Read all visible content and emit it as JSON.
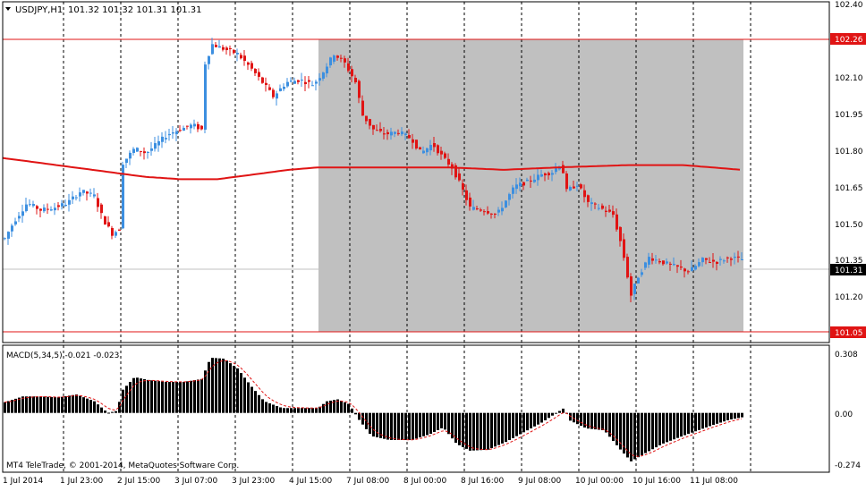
{
  "window": {
    "title": "USDJPY,H1",
    "ohlc": "101.32 101.32 101.31 101.31",
    "menu_icon": "triangle-down-icon"
  },
  "colors": {
    "background": "#ffffff",
    "grid": "#000000",
    "up_candle": "#3c8fe0",
    "down_candle": "#e01414",
    "ma_line": "#e01414",
    "rect_fill": "#c0c0c0",
    "hline": "#e01414",
    "price_label_bg": "#e01414",
    "current_label_bg": "#000000",
    "macd_hist": "#000000",
    "macd_signal": "#e01414"
  },
  "price_axis": {
    "range": [
      100.96,
      102.4
    ],
    "ticks": [
      "102.40",
      "102.10",
      "101.95",
      "101.80",
      "101.65",
      "101.50",
      "101.35",
      "101.20"
    ]
  },
  "price_labels": {
    "upper_line": "102.26",
    "lower_line": "101.05",
    "current": "101.31"
  },
  "macd": {
    "label": "MACD(5,34,5) -0.021 -0.023",
    "range": [
      -0.274,
      0.308
    ],
    "ticks": [
      "0.308",
      "0.00",
      "-0.274"
    ]
  },
  "time_axis": {
    "labels": [
      "1 Jul 2014",
      "1 Jul 23:00",
      "2 Jul 15:00",
      "3 Jul 07:00",
      "3 Jul 23:00",
      "4 Jul 15:00",
      "7 Jul 08:00",
      "8 Jul 00:00",
      "8 Jul 16:00",
      "9 Jul 08:00",
      "10 Jul 00:00",
      "10 Jul 16:00",
      "11 Jul 08:00"
    ]
  },
  "watermark": "MT4 TeleTrade, © 2001-2014, MetaQuotes Software Corp.",
  "chart_data": {
    "type": "candlestick",
    "symbol": "USDJPY",
    "timeframe": "H1",
    "price_range": [
      100.96,
      102.4
    ],
    "horizontal_lines": [
      102.26,
      101.05
    ],
    "current_price": 101.31,
    "moving_average": [
      [
        0,
        101.74
      ],
      [
        40,
        101.72
      ],
      [
        80,
        101.7
      ],
      [
        120,
        101.68
      ],
      [
        160,
        101.66
      ],
      [
        200,
        101.65
      ],
      [
        240,
        101.65
      ],
      [
        280,
        101.67
      ],
      [
        320,
        101.69
      ],
      [
        352,
        101.7
      ],
      [
        420,
        101.7
      ],
      [
        500,
        101.7
      ],
      [
        560,
        101.69
      ],
      [
        620,
        101.7
      ],
      [
        700,
        101.71
      ],
      [
        760,
        101.71
      ],
      [
        826,
        101.69
      ]
    ],
    "close_path": [
      [
        0,
        101.4
      ],
      [
        10,
        101.47
      ],
      [
        25,
        101.55
      ],
      [
        40,
        101.52
      ],
      [
        55,
        101.53
      ],
      [
        70,
        101.55
      ],
      [
        85,
        101.6
      ],
      [
        100,
        101.58
      ],
      [
        110,
        101.48
      ],
      [
        120,
        101.42
      ],
      [
        128,
        101.44
      ],
      [
        132,
        101.72
      ],
      [
        145,
        101.78
      ],
      [
        158,
        101.76
      ],
      [
        170,
        101.8
      ],
      [
        182,
        101.84
      ],
      [
        195,
        101.86
      ],
      [
        210,
        101.88
      ],
      [
        220,
        101.86
      ],
      [
        224,
        102.14
      ],
      [
        232,
        102.22
      ],
      [
        245,
        102.2
      ],
      [
        260,
        102.18
      ],
      [
        275,
        102.12
      ],
      [
        290,
        102.05
      ],
      [
        300,
        102.0
      ],
      [
        315,
        102.06
      ],
      [
        330,
        102.07
      ],
      [
        345,
        102.05
      ],
      [
        355,
        102.1
      ],
      [
        368,
        102.18
      ],
      [
        380,
        102.14
      ],
      [
        392,
        102.06
      ],
      [
        400,
        101.92
      ],
      [
        412,
        101.86
      ],
      [
        425,
        101.84
      ],
      [
        440,
        101.85
      ],
      [
        455,
        101.82
      ],
      [
        465,
        101.76
      ],
      [
        478,
        101.8
      ],
      [
        490,
        101.74
      ],
      [
        500,
        101.7
      ],
      [
        510,
        101.62
      ],
      [
        520,
        101.53
      ],
      [
        535,
        101.52
      ],
      [
        550,
        101.5
      ],
      [
        560,
        101.56
      ],
      [
        570,
        101.62
      ],
      [
        585,
        101.64
      ],
      [
        600,
        101.67
      ],
      [
        612,
        101.68
      ],
      [
        622,
        101.72
      ],
      [
        628,
        101.6
      ],
      [
        640,
        101.63
      ],
      [
        652,
        101.55
      ],
      [
        665,
        101.53
      ],
      [
        680,
        101.5
      ],
      [
        690,
        101.36
      ],
      [
        700,
        101.16
      ],
      [
        708,
        101.24
      ],
      [
        720,
        101.32
      ],
      [
        735,
        101.3
      ],
      [
        750,
        101.28
      ],
      [
        765,
        101.26
      ],
      [
        780,
        101.31
      ],
      [
        795,
        101.3
      ],
      [
        810,
        101.32
      ],
      [
        826,
        101.31
      ]
    ],
    "macd_histogram": [
      [
        0,
        0.055
      ],
      [
        10,
        0.07
      ],
      [
        20,
        0.085
      ],
      [
        40,
        0.085
      ],
      [
        60,
        0.08
      ],
      [
        80,
        0.095
      ],
      [
        100,
        0.06
      ],
      [
        115,
        0.0
      ],
      [
        125,
        0.01
      ],
      [
        132,
        0.12
      ],
      [
        145,
        0.185
      ],
      [
        160,
        0.17
      ],
      [
        180,
        0.16
      ],
      [
        200,
        0.16
      ],
      [
        220,
        0.175
      ],
      [
        230,
        0.285
      ],
      [
        245,
        0.28
      ],
      [
        260,
        0.23
      ],
      [
        275,
        0.14
      ],
      [
        290,
        0.06
      ],
      [
        310,
        0.025
      ],
      [
        330,
        0.025
      ],
      [
        350,
        0.025
      ],
      [
        360,
        0.06
      ],
      [
        372,
        0.07
      ],
      [
        385,
        0.045
      ],
      [
        395,
        -0.03
      ],
      [
        410,
        -0.12
      ],
      [
        430,
        -0.14
      ],
      [
        455,
        -0.14
      ],
      [
        475,
        -0.11
      ],
      [
        490,
        -0.075
      ],
      [
        505,
        -0.16
      ],
      [
        520,
        -0.195
      ],
      [
        540,
        -0.19
      ],
      [
        560,
        -0.15
      ],
      [
        580,
        -0.1
      ],
      [
        600,
        -0.05
      ],
      [
        615,
        -0.005
      ],
      [
        625,
        0.025
      ],
      [
        632,
        -0.04
      ],
      [
        650,
        -0.08
      ],
      [
        670,
        -0.09
      ],
      [
        690,
        -0.2
      ],
      [
        700,
        -0.25
      ],
      [
        715,
        -0.21
      ],
      [
        735,
        -0.16
      ],
      [
        760,
        -0.115
      ],
      [
        790,
        -0.065
      ],
      [
        810,
        -0.035
      ],
      [
        826,
        -0.021
      ]
    ],
    "macd_signal": -0.023
  }
}
